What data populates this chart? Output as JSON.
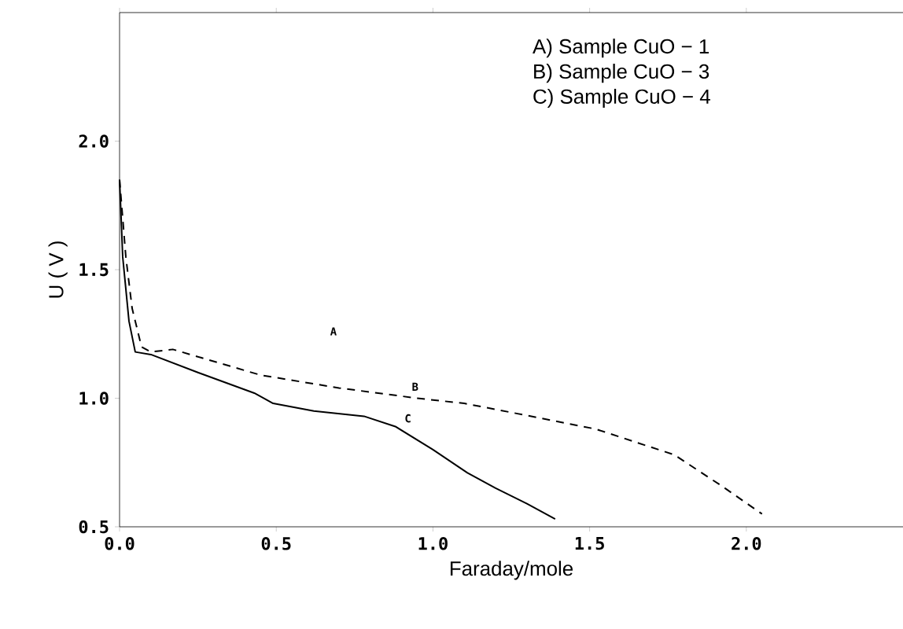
{
  "chart_data": {
    "type": "line",
    "xlabel": "Faraday/mole",
    "ylabel": "U ( V )",
    "xlim": [
      0,
      2.5
    ],
    "ylim": [
      0.5,
      2.5
    ],
    "xticks": [
      {
        "value": 0,
        "label": "0.0"
      },
      {
        "value": 0.5,
        "label": "0.5"
      },
      {
        "value": 1.0,
        "label": "1.0"
      },
      {
        "value": 1.5,
        "label": "1.5"
      },
      {
        "value": 2.0,
        "label": "2.0"
      }
    ],
    "yticks": [
      {
        "value": 0.5,
        "label": "0.5"
      },
      {
        "value": 1.0,
        "label": "1.0"
      },
      {
        "value": 1.5,
        "label": "1.5"
      },
      {
        "value": 2.0,
        "label": "2.0"
      }
    ],
    "series": [
      {
        "name": "B",
        "color": "#000000",
        "line_style": "dashed",
        "x": [
          0,
          0.02,
          0.04,
          0.07,
          0.1,
          0.17,
          0.45,
          0.7,
          0.95,
          1.1,
          1.27,
          1.52,
          1.77,
          1.92,
          2.05
        ],
        "values": [
          1.85,
          1.55,
          1.35,
          1.2,
          1.18,
          1.19,
          1.09,
          1.04,
          1.0,
          0.98,
          0.94,
          0.88,
          0.78,
          0.66,
          0.55
        ]
      },
      {
        "name": "C",
        "color": "#000000",
        "line_style": "solid",
        "x": [
          0,
          0.01,
          0.03,
          0.05,
          0.1,
          0.25,
          0.43,
          0.49,
          0.62,
          0.78,
          0.88,
          1.0,
          1.11,
          1.2,
          1.3,
          1.39
        ],
        "values": [
          1.85,
          1.55,
          1.3,
          1.18,
          1.17,
          1.1,
          1.02,
          0.98,
          0.95,
          0.93,
          0.89,
          0.8,
          0.71,
          0.65,
          0.59,
          0.53
        ]
      }
    ],
    "annotations": [
      "A",
      "A)  Sample CuO − 1",
      "B)  Sample CuO − 3",
      "C)  Sample CuO − 4"
    ]
  }
}
